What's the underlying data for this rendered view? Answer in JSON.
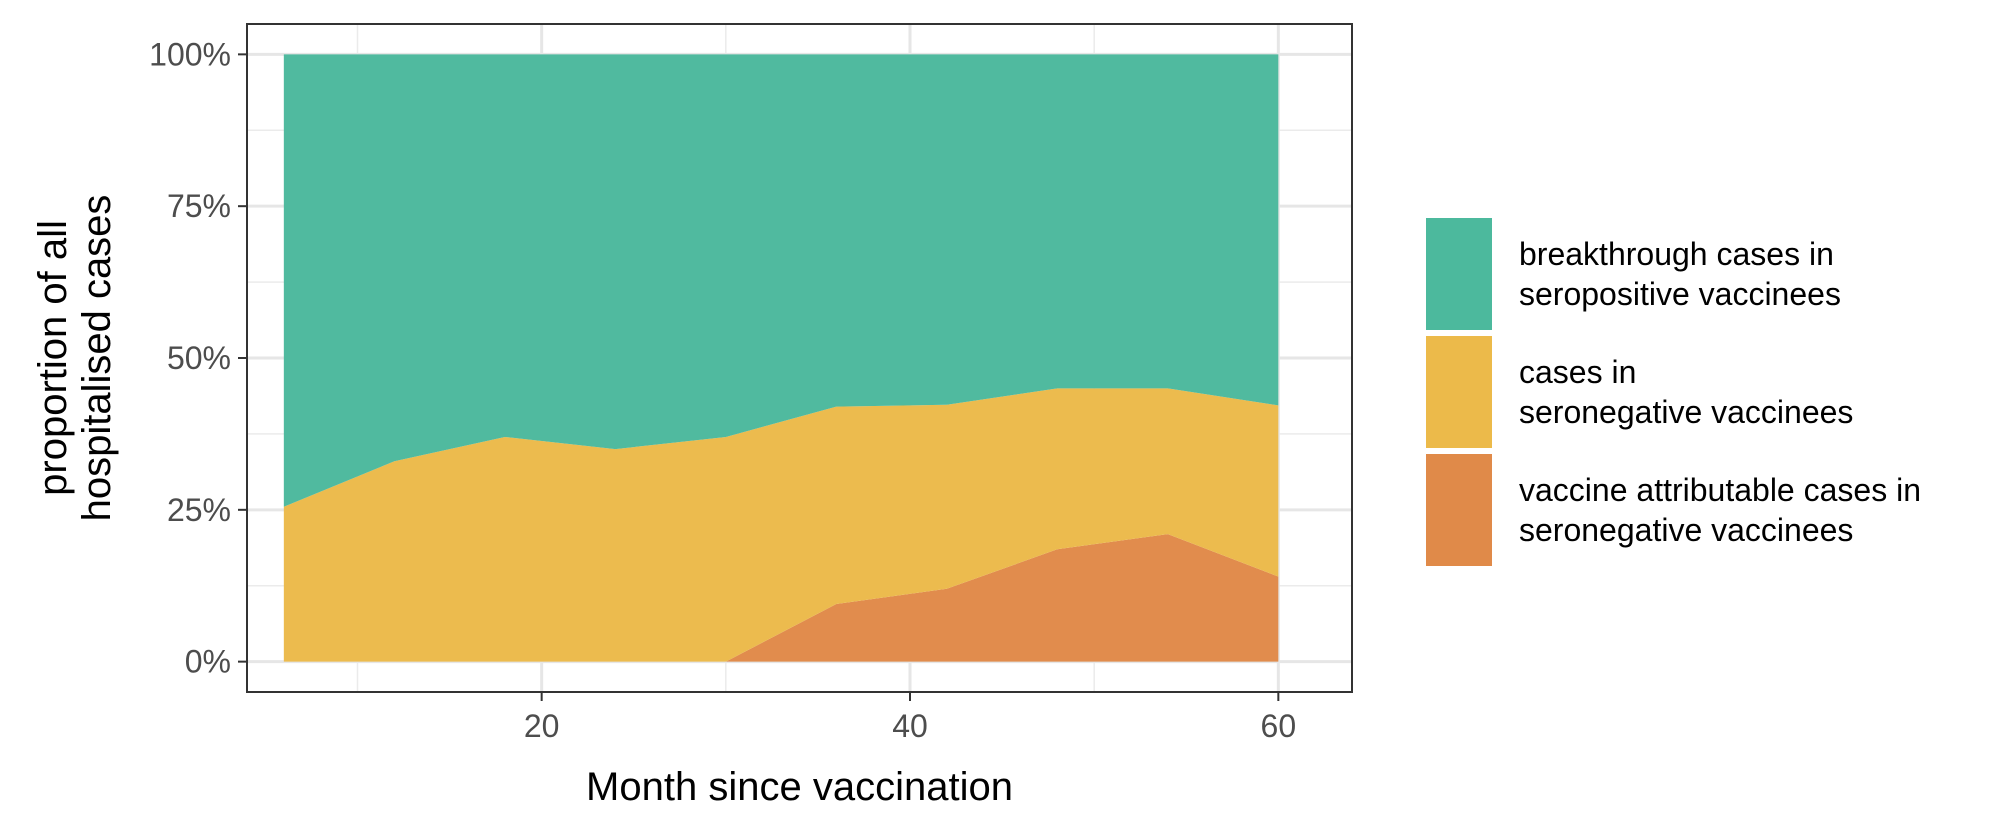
{
  "chart_data": {
    "type": "area",
    "stacked": true,
    "normalized": true,
    "title": "",
    "xlabel": "Month since vaccination",
    "ylabel": "proportion of all hospitalised cases",
    "ylabel_lines": [
      "proportion of all",
      "hospitalised cases"
    ],
    "xlim": [
      4,
      64
    ],
    "ylim": [
      -0.05,
      1.05
    ],
    "xticks": [
      20,
      40,
      60
    ],
    "yticks": [
      {
        "value": 0,
        "label": "0%"
      },
      {
        "value": 0.25,
        "label": "25%"
      },
      {
        "value": 0.5,
        "label": "50%"
      },
      {
        "value": 0.75,
        "label": "75%"
      },
      {
        "value": 1.0,
        "label": "100%"
      }
    ],
    "grid": true,
    "legend_position": "right",
    "x": [
      6,
      12,
      18,
      24,
      30,
      36,
      42,
      48,
      54,
      60
    ],
    "series": [
      {
        "name": "vaccine attributable cases in seronegative vaccinees",
        "legend_lines": [
          "vaccine attributable cases in",
          "seronegative vaccinees"
        ],
        "color": "#E08A49",
        "values": [
          0,
          0,
          0,
          0,
          0,
          0.095,
          0.12,
          0.185,
          0.21,
          0.14
        ]
      },
      {
        "name": "cases in seronegative vaccinees",
        "legend_lines": [
          "cases in",
          "seronegative vaccinees"
        ],
        "color": "#ECBA4A",
        "values": [
          0.255,
          0.33,
          0.37,
          0.35,
          0.37,
          0.325,
          0.303,
          0.265,
          0.24,
          0.282
        ]
      },
      {
        "name": "breakthrough cases in seropositive vaccinees",
        "legend_lines": [
          "breakthrough cases in",
          "seropositive vaccinees"
        ],
        "color": "#4CB99D",
        "values": [
          0.745,
          0.67,
          0.63,
          0.65,
          0.63,
          0.58,
          0.577,
          0.55,
          0.55,
          0.578
        ]
      }
    ],
    "legend_order": [
      2,
      1,
      0
    ]
  }
}
